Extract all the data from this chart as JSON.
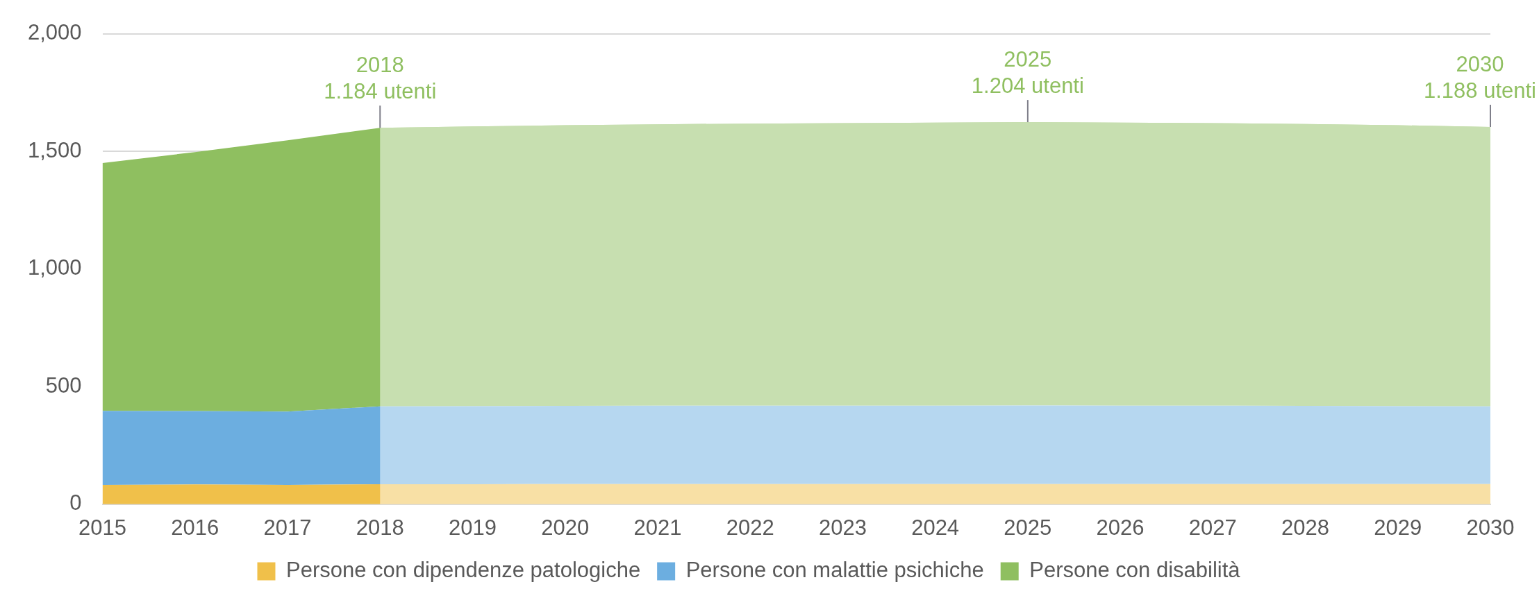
{
  "chart_data": {
    "type": "area",
    "stacked": true,
    "categories": [
      "2015",
      "2016",
      "2017",
      "2018",
      "2019",
      "2020",
      "2021",
      "2022",
      "2023",
      "2024",
      "2025",
      "2026",
      "2027",
      "2028",
      "2029",
      "2030"
    ],
    "series": [
      {
        "name": "Persone con dipendenze patologiche",
        "color": "#f0c04a",
        "values": [
          82,
          84,
          82,
          85,
          85,
          86,
          86,
          86,
          86,
          86,
          86,
          86,
          86,
          86,
          86,
          86
        ]
      },
      {
        "name": "Persone con malattie psichiche",
        "color": "#6caee0",
        "values": [
          315,
          312,
          312,
          331,
          332,
          332,
          333,
          333,
          333,
          333,
          334,
          333,
          333,
          332,
          331,
          330
        ]
      },
      {
        "name": "Persone con disabilità",
        "color": "#8fbf60",
        "values": [
          1053,
          1101,
          1153,
          1184,
          1189,
          1193,
          1196,
          1199,
          1201,
          1203,
          1204,
          1203,
          1201,
          1198,
          1194,
          1188
        ]
      }
    ],
    "bands": [
      {
        "axis": "x",
        "from": "2018",
        "to": "2030",
        "color": "#ffffff"
      }
    ],
    "ylim": [
      0,
      2000
    ],
    "yticks": [
      0,
      500,
      {
        "value": 1000,
        "label": "1,000"
      },
      {
        "value": 1500,
        "label": "1,500"
      },
      {
        "value": 2000,
        "label": "2,000"
      }
    ],
    "grid": "y",
    "legend": "bottom",
    "annotations": [
      {
        "text": "2018\n1.184 utenti",
        "x": "2018",
        "y": 1600
      },
      {
        "text": "2025\n1.204 utenti",
        "x": "2025",
        "y": 1624
      },
      {
        "text": "2030\n1.188 utenti",
        "x": "2030",
        "y": 1604
      }
    ]
  }
}
